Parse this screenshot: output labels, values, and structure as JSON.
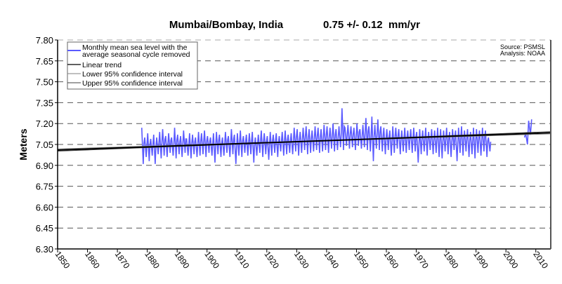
{
  "chart_data": {
    "type": "line",
    "title": "Mumbai/Bombay, India",
    "subtitle": "0.75 +/- 0.12  mm/yr",
    "xlabel": "",
    "ylabel": "Meters",
    "source": "Source: PSMSL",
    "analysis": "Analysis: NOAA",
    "xlim": [
      1850,
      2015
    ],
    "ylim": [
      6.3,
      7.8
    ],
    "x_ticks": [
      "1850",
      "1860",
      "1870",
      "1880",
      "1890",
      "1900",
      "1910",
      "1920",
      "1930",
      "1940",
      "1950",
      "1960",
      "1970",
      "1980",
      "1990",
      "2000",
      "2010"
    ],
    "y_ticks": [
      "7.80",
      "7.65",
      "7.50",
      "7.35",
      "7.20",
      "7.05",
      "6.90",
      "6.75",
      "6.60",
      "6.45",
      "6.30"
    ],
    "grid": true,
    "legend_position": "top-left",
    "legend": [
      {
        "label_line1": "Monthly mean sea level with the",
        "label_line2": "average seasonal cycle removed",
        "color": "#5a5aff"
      },
      {
        "label": "Linear trend",
        "color": "#000000"
      },
      {
        "label": "Lower 95% confidence interval",
        "color": "#808080"
      },
      {
        "label": "Upper 95% confidence interval",
        "color": "#404040"
      }
    ],
    "series": [
      {
        "name": "Monthly mean sea level (annual envelope)",
        "start_year": 1878,
        "high": [
          7.17,
          7.1,
          7.13,
          7.09,
          7.12,
          7.1,
          7.14,
          7.16,
          7.11,
          7.13,
          7.1,
          7.17,
          7.12,
          7.11,
          7.15,
          7.09,
          7.13,
          7.12,
          7.1,
          7.14,
          7.13,
          7.15,
          7.11,
          7.1,
          7.13,
          7.14,
          7.12,
          7.1,
          7.14,
          7.11,
          7.16,
          7.12,
          7.13,
          7.15,
          7.11,
          7.12,
          7.13,
          7.14,
          7.1,
          7.12,
          7.15,
          7.13,
          7.11,
          7.14,
          7.12,
          7.13,
          7.11,
          7.14,
          7.15,
          7.12,
          7.13,
          7.17,
          7.16,
          7.14,
          7.17,
          7.18,
          7.16,
          7.15,
          7.18,
          7.17,
          7.16,
          7.19,
          7.18,
          7.17,
          7.2,
          7.16,
          7.18,
          7.31,
          7.17,
          7.19,
          7.18,
          7.17,
          7.2,
          7.16,
          7.19,
          7.24,
          7.18,
          7.25,
          7.19,
          7.23,
          7.18,
          7.17,
          7.16,
          7.15,
          7.18,
          7.17,
          7.16,
          7.15,
          7.17,
          7.15,
          7.16,
          7.17,
          7.14,
          7.16,
          7.15,
          7.17,
          7.14,
          7.16,
          7.15,
          7.17,
          7.16,
          7.15,
          7.17,
          7.14,
          7.16,
          7.15,
          7.17,
          7.18,
          7.15,
          7.16,
          7.14,
          7.17,
          7.16,
          7.15,
          7.17,
          7.15,
          7.1
        ],
        "low": [
          6.91,
          6.96,
          6.93,
          6.97,
          6.91,
          6.98,
          6.95,
          6.97,
          6.96,
          6.99,
          6.97,
          6.95,
          6.98,
          6.96,
          6.99,
          6.97,
          6.95,
          6.98,
          6.96,
          6.97,
          6.98,
          6.96,
          6.99,
          6.97,
          6.92,
          6.98,
          6.96,
          6.97,
          6.99,
          6.96,
          6.98,
          6.91,
          6.97,
          6.96,
          6.99,
          6.97,
          6.98,
          6.92,
          6.97,
          6.99,
          6.96,
          6.98,
          6.94,
          6.97,
          6.99,
          6.96,
          7.0,
          6.97,
          6.98,
          6.99,
          6.98,
          7.0,
          6.97,
          6.99,
          7.01,
          6.98,
          6.99,
          7.0,
          7.01,
          6.99,
          7.0,
          7.01,
          6.99,
          7.02,
          7.0,
          7.01,
          7.03,
          7.01,
          7.04,
          7.02,
          7.03,
          7.01,
          7.04,
          7.02,
          7.03,
          7.01,
          7.0,
          6.93,
          7.02,
          7.01,
          7.0,
          6.98,
          7.01,
          6.97,
          6.99,
          7.02,
          6.98,
          7.0,
          6.99,
          7.01,
          6.99,
          7.0,
          6.92,
          6.98,
          7.0,
          6.97,
          7.01,
          6.98,
          6.99,
          6.96,
          6.95,
          7.0,
          6.98,
          6.96,
          7.01,
          6.93,
          6.99,
          6.97,
          7.0,
          6.96,
          6.98,
          6.95,
          6.99,
          6.97,
          7.0,
          6.96,
          7.0
        ]
      },
      {
        "name": "Monthly mean sea level (recent)",
        "years": [
          2006,
          2007,
          2008
        ],
        "high": [
          7.13,
          7.22,
          7.23
        ],
        "low": [
          7.1,
          7.05,
          7.12
        ]
      }
    ],
    "trend": {
      "x": [
        1850,
        2015
      ],
      "linear": [
        7.01,
        7.134
      ],
      "lower95": [
        7.018,
        7.126
      ],
      "upper95": [
        7.002,
        7.142
      ]
    }
  }
}
